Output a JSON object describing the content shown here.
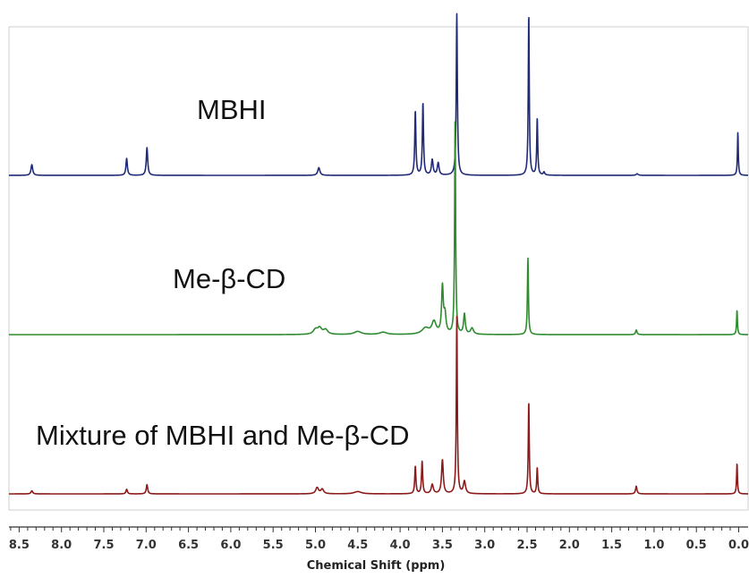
{
  "chart_data": {
    "type": "line",
    "title": "",
    "xlabel": "Chemical Shift (ppm)",
    "ylabel": "",
    "x_reversed": true,
    "xlim": [
      8.5,
      0.0
    ],
    "x_ticks": [
      8.5,
      8.0,
      7.5,
      7.0,
      6.5,
      6.0,
      5.5,
      5.0,
      4.5,
      4.0,
      3.5,
      3.0,
      2.5,
      2.0,
      1.5,
      1.0,
      0.5,
      0.0
    ],
    "x_tick_labels": [
      "8.5",
      "8.0",
      "7.5",
      "7.0",
      "6.5",
      "6.0",
      "5.5",
      "5.0",
      "4.5",
      "4.0",
      "3.5",
      "3.0",
      "2.5",
      "2.0",
      "1.5",
      "1.0",
      "0.5",
      "0.0"
    ],
    "y_units": "relative intensity",
    "grid": false,
    "legend": "none (spectra labeled by text)",
    "series": [
      {
        "name": "MBHI",
        "color": "#1f2a78",
        "peaks": [
          {
            "x": 8.35,
            "y": 0.07,
            "w": 0.012
          },
          {
            "x": 7.23,
            "y": 0.11,
            "w": 0.01
          },
          {
            "x": 6.99,
            "y": 0.18,
            "w": 0.01
          },
          {
            "x": 4.96,
            "y": 0.05,
            "w": 0.015
          },
          {
            "x": 3.82,
            "y": 0.42,
            "w": 0.008
          },
          {
            "x": 3.73,
            "y": 0.47,
            "w": 0.008
          },
          {
            "x": 3.62,
            "y": 0.1,
            "w": 0.012
          },
          {
            "x": 3.55,
            "y": 0.08,
            "w": 0.012
          },
          {
            "x": 3.33,
            "y": 1.05,
            "w": 0.008
          },
          {
            "x": 2.48,
            "y": 1.05,
            "w": 0.007
          },
          {
            "x": 2.38,
            "y": 0.37,
            "w": 0.007
          },
          {
            "x": 2.3,
            "y": 0.02,
            "w": 0.01
          },
          {
            "x": 1.2,
            "y": 0.01,
            "w": 0.015
          },
          {
            "x": 0.01,
            "y": 0.28,
            "w": 0.006
          }
        ]
      },
      {
        "name": "Me-β-CD",
        "color": "#2e8b2e",
        "peaks": [
          {
            "x": 5.0,
            "y": 0.03,
            "w": 0.03
          },
          {
            "x": 4.95,
            "y": 0.04,
            "w": 0.03
          },
          {
            "x": 4.88,
            "y": 0.03,
            "w": 0.03
          },
          {
            "x": 4.5,
            "y": 0.02,
            "w": 0.05
          },
          {
            "x": 4.2,
            "y": 0.015,
            "w": 0.05
          },
          {
            "x": 3.7,
            "y": 0.04,
            "w": 0.05
          },
          {
            "x": 3.6,
            "y": 0.08,
            "w": 0.03
          },
          {
            "x": 3.5,
            "y": 0.3,
            "w": 0.012
          },
          {
            "x": 3.47,
            "y": 0.12,
            "w": 0.015
          },
          {
            "x": 3.35,
            "y": 1.4,
            "w": 0.007
          },
          {
            "x": 3.24,
            "y": 0.13,
            "w": 0.012
          },
          {
            "x": 3.15,
            "y": 0.04,
            "w": 0.02
          },
          {
            "x": 2.49,
            "y": 0.5,
            "w": 0.007
          },
          {
            "x": 1.21,
            "y": 0.03,
            "w": 0.01
          },
          {
            "x": 0.02,
            "y": 0.16,
            "w": 0.006
          }
        ]
      },
      {
        "name": "Mixture of MBHI and Me-β-CD",
        "color": "#8b1a1a",
        "peaks": [
          {
            "x": 8.35,
            "y": 0.02,
            "w": 0.012
          },
          {
            "x": 7.23,
            "y": 0.03,
            "w": 0.01
          },
          {
            "x": 6.99,
            "y": 0.06,
            "w": 0.01
          },
          {
            "x": 4.98,
            "y": 0.04,
            "w": 0.02
          },
          {
            "x": 4.92,
            "y": 0.03,
            "w": 0.02
          },
          {
            "x": 4.5,
            "y": 0.015,
            "w": 0.05
          },
          {
            "x": 3.82,
            "y": 0.18,
            "w": 0.008
          },
          {
            "x": 3.74,
            "y": 0.21,
            "w": 0.008
          },
          {
            "x": 3.62,
            "y": 0.06,
            "w": 0.015
          },
          {
            "x": 3.5,
            "y": 0.22,
            "w": 0.012
          },
          {
            "x": 3.33,
            "y": 1.15,
            "w": 0.007
          },
          {
            "x": 3.24,
            "y": 0.08,
            "w": 0.015
          },
          {
            "x": 2.48,
            "y": 0.6,
            "w": 0.007
          },
          {
            "x": 2.38,
            "y": 0.17,
            "w": 0.007
          },
          {
            "x": 1.21,
            "y": 0.05,
            "w": 0.01
          },
          {
            "x": 0.02,
            "y": 0.2,
            "w": 0.006
          }
        ]
      }
    ]
  }
}
